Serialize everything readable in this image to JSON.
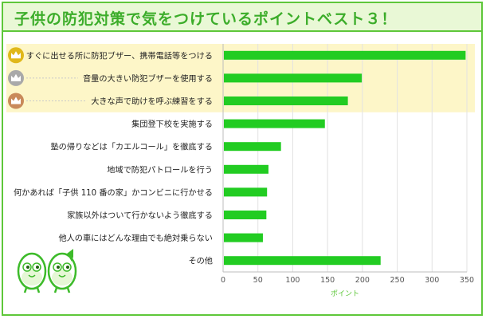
{
  "header": {
    "title": "子供の防犯対策で気をつけているポイントベスト３！"
  },
  "colors": {
    "bar": "#22cc22",
    "accent": "#5ec73a",
    "highlight": "#fdf6c8",
    "gold": "#e0b81a",
    "silver": "#a9a9a9",
    "bronze": "#c98a5a"
  },
  "chart_data": {
    "type": "bar",
    "orientation": "horizontal",
    "categories": [
      "すぐに出せる所に防犯ブザー、携帯電話等をつける",
      "音量の大きい防犯ブザーを使用する",
      "大きな声で助けを呼ぶ練習をする",
      "集団登下校を実施する",
      "塾の帰りなどは「カエルコール」を徹底する",
      "地域で防犯パトロールを行う",
      "何かあれば「子供 110 番の家」かコンビニに行かせる",
      "家族以外はついて行かないよう徹底する",
      "他人の車にはどんな理由でも絶対乗らない",
      "その他"
    ],
    "values": [
      347,
      198,
      178,
      145,
      82,
      64,
      62,
      61,
      56,
      225
    ],
    "xlabel": "ポイント",
    "xlim": [
      0,
      350
    ],
    "xticks": [
      0,
      50,
      100,
      150,
      200,
      250,
      300,
      350
    ],
    "top3_icons": [
      "gold-crown-icon",
      "silver-crown-icon",
      "bronze-crown-icon"
    ],
    "grid": true
  }
}
